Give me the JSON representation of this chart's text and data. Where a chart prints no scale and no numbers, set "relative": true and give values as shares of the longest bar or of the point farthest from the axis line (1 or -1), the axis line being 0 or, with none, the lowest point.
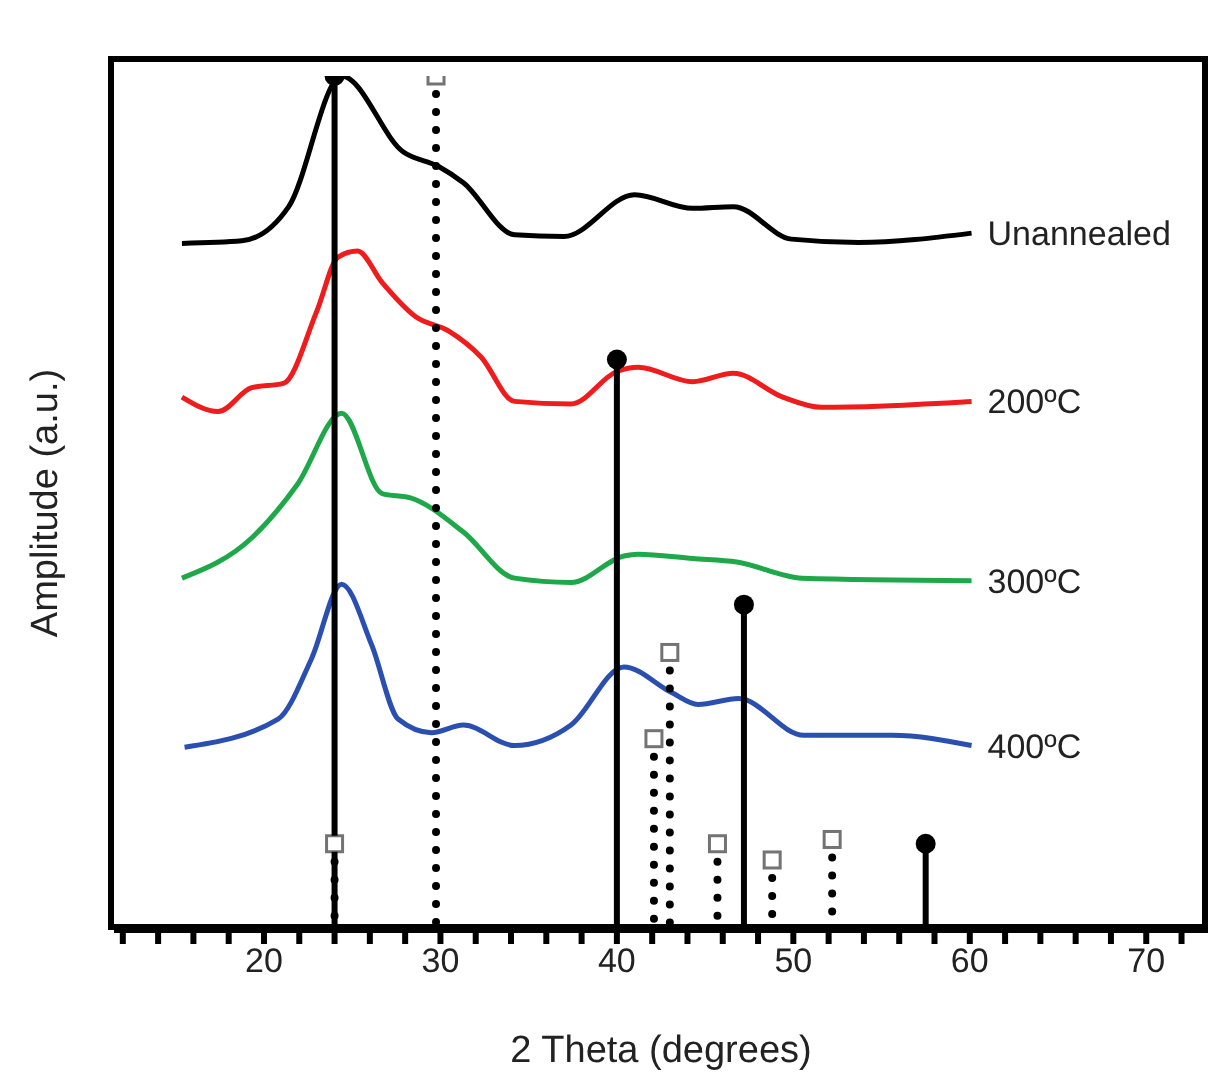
{
  "chart_data": {
    "type": "line",
    "xlabel": "2 Theta (degrees)",
    "ylabel": "Amplitude (a.u.)",
    "relative": true,
    "marker": "none",
    "xlim": [
      11.5,
      73.5
    ],
    "xticks": [
      {
        "value": 12,
        "label": null
      },
      {
        "value": 14,
        "label": null
      },
      {
        "value": 16,
        "label": null
      },
      {
        "value": 18,
        "label": null
      },
      20,
      {
        "value": 22,
        "label": null
      },
      {
        "value": 24,
        "label": null
      },
      {
        "value": 26,
        "label": null
      },
      {
        "value": 28,
        "label": null
      },
      30,
      {
        "value": 32,
        "label": null
      },
      {
        "value": 34,
        "label": null
      },
      {
        "value": 36,
        "label": null
      },
      {
        "value": 38,
        "label": null
      },
      40,
      {
        "value": 42,
        "label": null
      },
      {
        "value": 44,
        "label": null
      },
      {
        "value": 46,
        "label": null
      },
      {
        "value": 48,
        "label": null
      },
      50,
      {
        "value": 52,
        "label": null
      },
      {
        "value": 54,
        "label": null
      },
      {
        "value": 56,
        "label": null
      },
      {
        "value": 58,
        "label": null
      },
      60,
      {
        "value": 62,
        "label": null
      },
      {
        "value": 64,
        "label": null
      },
      {
        "value": 66,
        "label": null
      },
      {
        "value": 68,
        "label": null
      },
      70,
      {
        "value": 72,
        "label": null
      }
    ],
    "series": [
      {
        "name": "Unannealed",
        "color": "#000000",
        "x": [
          15.35,
          18.75,
          21.4,
          24.4,
          27.9,
          29.9,
          31.3,
          34.2,
          37.0,
          41.0,
          44.3,
          46.6,
          49.9,
          53.7,
          60.1
        ],
        "values": [
          0.804,
          0.807,
          0.847,
          1.0,
          0.911,
          0.894,
          0.875,
          0.814,
          0.812,
          0.861,
          0.845,
          0.847,
          0.809,
          0.805,
          0.816
        ]
      },
      {
        "name": "200ºC",
        "color": "#ee1c1c",
        "x": [
          15.35,
          17.4,
          19.3,
          21.1,
          23.0,
          24.2,
          25.3,
          26.7,
          28.6,
          30.5,
          32.3,
          34.2,
          37.4,
          40.0,
          41.2,
          44.3,
          46.6,
          49.4,
          51.6,
          60.1
        ],
        "values": [
          0.624,
          0.607,
          0.635,
          0.64,
          0.725,
          0.788,
          0.795,
          0.758,
          0.718,
          0.701,
          0.671,
          0.619,
          0.616,
          0.654,
          0.659,
          0.642,
          0.652,
          0.624,
          0.612,
          0.619
        ]
      },
      {
        "name": "300ºC",
        "color": "#1ea84a",
        "x": [
          15.35,
          19.3,
          21.9,
          24.4,
          26.7,
          28.3,
          31.3,
          34.2,
          37.4,
          40.4,
          41.2,
          44.3,
          46.8,
          50.5,
          60.1
        ],
        "values": [
          0.412,
          0.459,
          0.522,
          0.605,
          0.511,
          0.506,
          0.466,
          0.412,
          0.407,
          0.438,
          0.44,
          0.435,
          0.431,
          0.412,
          0.409
        ]
      },
      {
        "name": "400ºC",
        "color": "#2a4fb0",
        "x": [
          15.5,
          20.8,
          22.7,
          24.4,
          26.1,
          27.6,
          29.5,
          31.3,
          34.2,
          37.4,
          40.4,
          43.1,
          44.6,
          46.9,
          50.6,
          55.6,
          60.1
        ],
        "values": [
          0.214,
          0.247,
          0.318,
          0.405,
          0.334,
          0.247,
          0.231,
          0.24,
          0.216,
          0.24,
          0.308,
          0.278,
          0.264,
          0.271,
          0.228,
          0.228,
          0.216
        ]
      },
      {
        "type": "lollipop",
        "color": "#000000",
        "marker": "circle",
        "line_style": "solid",
        "x": [
          24.0,
          40.0,
          47.2,
          57.5
        ],
        "values": [
          1.0,
          0.668,
          0.381,
          0.101
        ]
      },
      {
        "type": "lollipop",
        "color": "#000000",
        "marker": "square",
        "line_style": "dotted",
        "x": [
          24.0,
          29.75,
          42.1,
          43.0,
          45.7,
          48.8,
          52.2
        ],
        "values": [
          0.101,
          1.0,
          0.224,
          0.325,
          0.101,
          0.082,
          0.106
        ]
      }
    ]
  }
}
